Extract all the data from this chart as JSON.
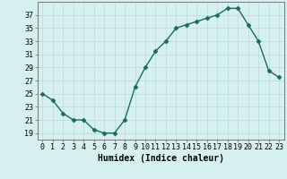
{
  "x": [
    0,
    1,
    2,
    3,
    4,
    5,
    6,
    7,
    8,
    9,
    10,
    11,
    12,
    13,
    14,
    15,
    16,
    17,
    18,
    19,
    20,
    21,
    22,
    23
  ],
  "y": [
    25,
    24,
    22,
    21,
    21,
    19.5,
    19,
    19,
    21,
    26,
    29,
    31.5,
    33,
    35,
    35.5,
    36,
    36.5,
    37,
    38,
    38,
    35.5,
    33,
    28.5,
    27.5
  ],
  "line_color": "#1a6b5a",
  "marker_color": "#1a6b5a",
  "bg_color": "#d6f0f0",
  "grid_color": "#b8dada",
  "xlabel": "Humidex (Indice chaleur)",
  "xlim": [
    -0.5,
    23.5
  ],
  "ylim": [
    18,
    39
  ],
  "yticks": [
    19,
    21,
    23,
    25,
    27,
    29,
    31,
    33,
    35,
    37
  ],
  "xticks": [
    0,
    1,
    2,
    3,
    4,
    5,
    6,
    7,
    8,
    9,
    10,
    11,
    12,
    13,
    14,
    15,
    16,
    17,
    18,
    19,
    20,
    21,
    22,
    23
  ],
  "xlabel_fontsize": 7.0,
  "tick_fontsize": 6.0
}
